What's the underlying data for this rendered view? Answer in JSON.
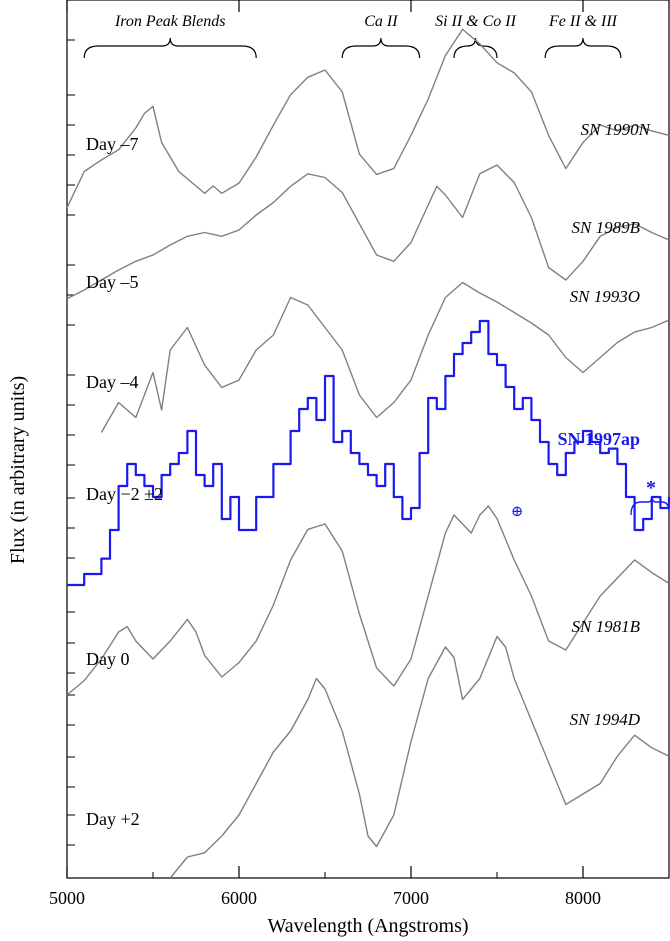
{
  "chart_data": {
    "type": "line",
    "xlabel": "Wavelength (Angstroms)",
    "ylabel": "Flux (in arbitrary units)",
    "xlim": [
      5000,
      8500
    ],
    "x_ticks": [
      "5000",
      "6000",
      "7000",
      "8000"
    ],
    "grid": false,
    "feature_labels": [
      {
        "text": "Iron Peak Blends",
        "x_from": 5100,
        "x_to": 6100
      },
      {
        "text": "Ca II",
        "x_from": 6600,
        "x_to": 7050
      },
      {
        "text": "Si II & Co II",
        "x_from": 7250,
        "x_to": 7500
      },
      {
        "text": "Fe II & III",
        "x_from": 7780,
        "x_to": 8220
      }
    ],
    "day_labels": [
      "Day –7",
      "Day –5",
      "Day –4",
      "Day −2 ±2",
      "Day 0",
      "Day +2"
    ],
    "annotations": {
      "telluric_symbol": "⊕",
      "asterisk": "*"
    },
    "series": [
      {
        "name": "SN 1990N",
        "color": "#808080",
        "highlight": false,
        "x": [
          5000,
          5100,
          5200,
          5300,
          5400,
          5450,
          5500,
          5550,
          5600,
          5650,
          5700,
          5750,
          5800,
          5850,
          5900,
          6000,
          6100,
          6200,
          6300,
          6400,
          6500,
          6600,
          6700,
          6800,
          6900,
          7000,
          7100,
          7200,
          7300,
          7400,
          7500,
          7600,
          7700,
          7800,
          7900,
          8000,
          8100,
          8200,
          8300,
          8400,
          8500
        ],
        "y": [
          0.05,
          0.3,
          0.38,
          0.45,
          0.6,
          0.7,
          0.75,
          0.5,
          0.4,
          0.3,
          0.25,
          0.2,
          0.15,
          0.2,
          0.15,
          0.22,
          0.4,
          0.62,
          0.83,
          0.95,
          1.0,
          0.85,
          0.42,
          0.28,
          0.32,
          0.55,
          0.8,
          1.1,
          1.28,
          1.18,
          1.05,
          0.98,
          0.85,
          0.55,
          0.32,
          0.5,
          0.62,
          0.58,
          0.62,
          0.58,
          0.55
        ]
      },
      {
        "name": "SN 1989B",
        "color": "#808080",
        "highlight": false,
        "x": [
          5000,
          5100,
          5200,
          5300,
          5400,
          5500,
          5600,
          5700,
          5800,
          5900,
          6000,
          6100,
          6200,
          6300,
          6400,
          6500,
          6600,
          6700,
          6800,
          6900,
          7000,
          7100,
          7150,
          7200,
          7300,
          7400,
          7500,
          7600,
          7700,
          7800,
          7900,
          8000,
          8100,
          8200,
          8300,
          8400,
          8500
        ],
        "y": [
          0.05,
          0.12,
          0.2,
          0.28,
          0.35,
          0.4,
          0.48,
          0.55,
          0.58,
          0.55,
          0.6,
          0.72,
          0.82,
          0.95,
          1.05,
          1.02,
          0.9,
          0.65,
          0.4,
          0.35,
          0.5,
          0.8,
          0.95,
          0.88,
          0.7,
          1.05,
          1.12,
          0.98,
          0.7,
          0.3,
          0.2,
          0.35,
          0.55,
          0.62,
          0.65,
          0.58,
          0.52
        ]
      },
      {
        "name": "SN 1993O",
        "color": "#808080",
        "highlight": false,
        "x": [
          5200,
          5300,
          5400,
          5500,
          5550,
          5600,
          5700,
          5800,
          5900,
          6000,
          6100,
          6200,
          6300,
          6400,
          6500,
          6600,
          6700,
          6800,
          6900,
          7000,
          7100,
          7200,
          7300,
          7400,
          7500,
          7600,
          7700,
          7800,
          7900,
          8000,
          8100,
          8200,
          8300,
          8400,
          8500
        ],
        "y": [
          0.05,
          0.25,
          0.15,
          0.45,
          0.2,
          0.6,
          0.75,
          0.5,
          0.35,
          0.4,
          0.6,
          0.7,
          0.95,
          0.9,
          0.75,
          0.6,
          0.3,
          0.15,
          0.25,
          0.4,
          0.7,
          0.95,
          1.05,
          0.98,
          0.92,
          0.85,
          0.78,
          0.7,
          0.55,
          0.45,
          0.55,
          0.65,
          0.72,
          0.75,
          0.8
        ]
      },
      {
        "name": "SN 1997ap",
        "color": "#1a1aee",
        "highlight": true,
        "x": [
          5000,
          5100,
          5200,
          5250,
          5300,
          5350,
          5400,
          5450,
          5500,
          5550,
          5600,
          5650,
          5700,
          5750,
          5800,
          5850,
          5900,
          5950,
          6000,
          6100,
          6200,
          6300,
          6350,
          6400,
          6450,
          6500,
          6550,
          6600,
          6650,
          6700,
          6750,
          6800,
          6850,
          6900,
          6950,
          7000,
          7050,
          7100,
          7150,
          7200,
          7250,
          7300,
          7350,
          7400,
          7450,
          7500,
          7550,
          7600,
          7650,
          7700,
          7750,
          7800,
          7850,
          7900,
          7950,
          8000,
          8050,
          8100,
          8150,
          8200,
          8250,
          8300,
          8350,
          8400,
          8450,
          8500
        ],
        "y": [
          0.0,
          0.05,
          0.12,
          0.25,
          0.45,
          0.55,
          0.5,
          0.45,
          0.4,
          0.5,
          0.55,
          0.6,
          0.7,
          0.5,
          0.45,
          0.55,
          0.3,
          0.4,
          0.25,
          0.4,
          0.55,
          0.7,
          0.8,
          0.85,
          0.75,
          0.95,
          0.65,
          0.7,
          0.6,
          0.55,
          0.5,
          0.45,
          0.55,
          0.4,
          0.3,
          0.35,
          0.6,
          0.85,
          0.8,
          0.95,
          1.05,
          1.1,
          1.15,
          1.2,
          1.05,
          1.0,
          0.9,
          0.8,
          0.85,
          0.75,
          0.65,
          0.55,
          0.5,
          0.6,
          0.65,
          0.7,
          0.65,
          0.6,
          0.62,
          0.55,
          0.4,
          0.25,
          0.3,
          0.4,
          0.35,
          0.4
        ]
      },
      {
        "name": "SN 1981B",
        "color": "#808080",
        "highlight": false,
        "x": [
          5000,
          5100,
          5200,
          5300,
          5350,
          5400,
          5500,
          5600,
          5700,
          5750,
          5800,
          5900,
          6000,
          6100,
          6200,
          6300,
          6400,
          6500,
          6600,
          6700,
          6800,
          6900,
          7000,
          7100,
          7200,
          7250,
          7300,
          7350,
          7400,
          7450,
          7500,
          7600,
          7700,
          7800,
          7900,
          8000,
          8100,
          8200,
          8300,
          8400,
          8500
        ],
        "y": [
          0.0,
          0.08,
          0.2,
          0.35,
          0.38,
          0.3,
          0.2,
          0.3,
          0.42,
          0.35,
          0.22,
          0.1,
          0.18,
          0.3,
          0.5,
          0.75,
          0.92,
          0.95,
          0.8,
          0.45,
          0.15,
          0.05,
          0.2,
          0.55,
          0.9,
          1.0,
          0.95,
          0.9,
          1.0,
          1.05,
          0.98,
          0.75,
          0.55,
          0.3,
          0.25,
          0.4,
          0.55,
          0.65,
          0.75,
          0.68,
          0.62
        ]
      },
      {
        "name": "SN 1994D",
        "color": "#808080",
        "highlight": false,
        "x": [
          5600,
          5650,
          5700,
          5800,
          5900,
          6000,
          6100,
          6200,
          6300,
          6400,
          6450,
          6500,
          6600,
          6700,
          6750,
          6800,
          6900,
          7000,
          7100,
          7200,
          7250,
          7300,
          7400,
          7450,
          7500,
          7550,
          7600,
          7700,
          7800,
          7900,
          8000,
          8100,
          8200,
          8300,
          8400,
          8500
        ],
        "y": [
          0.0,
          0.05,
          0.1,
          0.12,
          0.2,
          0.3,
          0.45,
          0.6,
          0.7,
          0.85,
          0.95,
          0.9,
          0.7,
          0.4,
          0.2,
          0.15,
          0.3,
          0.65,
          0.95,
          1.1,
          1.05,
          0.85,
          0.95,
          1.05,
          1.15,
          1.1,
          0.95,
          0.75,
          0.55,
          0.35,
          0.4,
          0.45,
          0.58,
          0.68,
          0.62,
          0.58
        ]
      }
    ],
    "day_assignment": {
      "Day –7": "SN 1990N",
      "Day –5": "SN 1989B",
      "Day –4": "SN 1993O",
      "Day −2 ±2": "SN 1997ap",
      "Day 0": "SN 1981B",
      "Day +2": "SN 1994D"
    }
  }
}
